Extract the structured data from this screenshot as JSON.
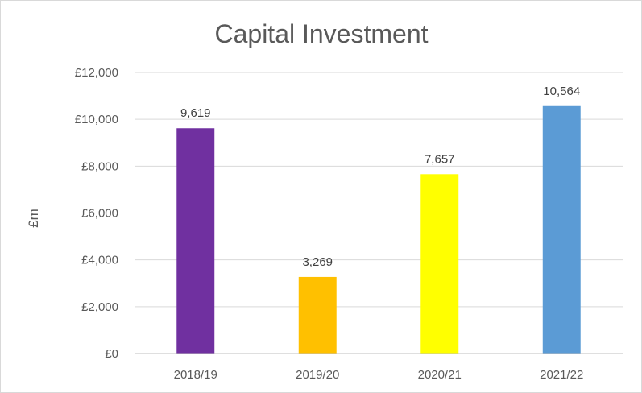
{
  "chart_data": {
    "type": "bar",
    "title": "Capital Investment",
    "xlabel": "",
    "ylabel": "£m",
    "categories": [
      "2018/19",
      "2019/20",
      "2020/21",
      "2021/22"
    ],
    "series": [
      {
        "values": [
          9619,
          3269,
          7657,
          10564
        ],
        "data_labels": [
          "9,619",
          "3,269",
          "7,657",
          "10,564"
        ],
        "colors": [
          "#7030a0",
          "#ffc000",
          "#ffff00",
          "#5b9bd5"
        ]
      }
    ],
    "ylim": [
      0,
      12000
    ],
    "yticks": [
      0,
      2000,
      4000,
      6000,
      8000,
      10000,
      12000
    ],
    "ytick_labels": [
      "£0",
      "£2,000",
      "£4,000",
      "£6,000",
      "£8,000",
      "£10,000",
      "£12,000"
    ],
    "grid": true,
    "legend": "none"
  }
}
